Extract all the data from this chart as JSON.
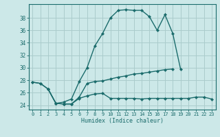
{
  "xlabel": "Humidex (Indice chaleur)",
  "background_color": "#cce8e8",
  "grid_color": "#aacccc",
  "line_color": "#1a6b6b",
  "x_ticks": [
    0,
    1,
    2,
    3,
    4,
    5,
    6,
    7,
    8,
    9,
    10,
    11,
    12,
    13,
    14,
    15,
    16,
    17,
    18,
    19,
    20,
    21,
    22,
    23
  ],
  "y_ticks": [
    24,
    26,
    28,
    30,
    32,
    34,
    36,
    38
  ],
  "ylim": [
    23.3,
    40.2
  ],
  "xlim": [
    -0.5,
    23.5
  ],
  "series": [
    {
      "x": [
        0,
        1,
        2,
        3,
        4,
        5,
        6,
        7,
        8,
        9,
        10,
        11,
        12,
        13,
        14,
        15,
        16,
        17,
        18,
        19
      ],
      "y": [
        27.7,
        27.5,
        26.6,
        24.3,
        24.5,
        25.0,
        27.8,
        30.0,
        33.5,
        35.5,
        38.0,
        39.2,
        39.3,
        39.2,
        39.2,
        38.2,
        36.0,
        38.5,
        35.5,
        29.8
      ]
    },
    {
      "x": [
        0,
        1,
        2,
        3,
        4,
        5,
        6,
        7,
        8,
        9,
        10,
        11,
        12,
        13,
        14,
        15,
        16,
        17,
        18
      ],
      "y": [
        27.7,
        27.5,
        26.6,
        24.3,
        24.2,
        24.2,
        25.3,
        27.5,
        27.8,
        27.9,
        28.2,
        28.5,
        28.7,
        29.0,
        29.1,
        29.3,
        29.5,
        29.7,
        29.8
      ]
    },
    {
      "x": [
        2,
        3,
        4,
        5,
        6,
        7,
        8,
        9,
        10,
        11,
        12,
        13,
        14,
        15,
        16,
        17,
        18,
        19,
        20,
        21,
        22,
        23
      ],
      "y": [
        26.6,
        24.3,
        24.2,
        24.2,
        25.1,
        25.5,
        25.8,
        25.9,
        25.1,
        25.1,
        25.1,
        25.1,
        25.0,
        25.1,
        25.1,
        25.1,
        25.1,
        25.1,
        25.1,
        25.3,
        25.3,
        25.0
      ]
    }
  ]
}
